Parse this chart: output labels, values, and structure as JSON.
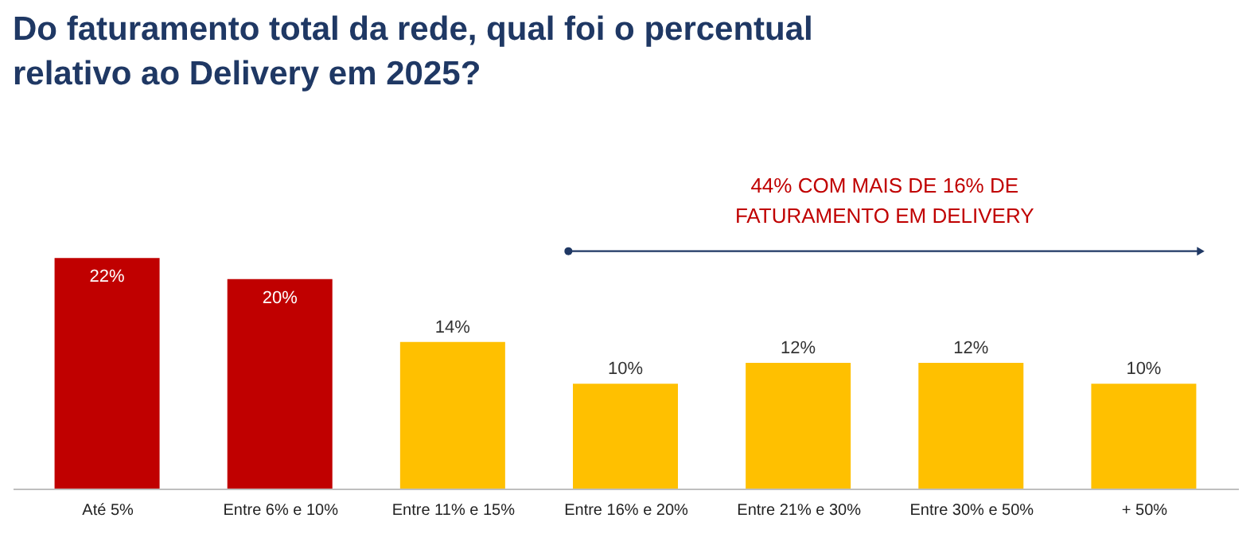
{
  "chart_data": {
    "type": "bar",
    "title": [
      "Do faturamento total da rede, qual foi o percentual",
      "relativo ao Delivery em 2025?"
    ],
    "categories": [
      "Até 5%",
      "Entre 6% e 10%",
      "Entre 11% e 15%",
      "Entre 16% e 20%",
      "Entre 21% e 30%",
      "Entre 30% e 50%",
      "+ 50%"
    ],
    "values": [
      22,
      20,
      14,
      10,
      12,
      12,
      10
    ],
    "value_labels": [
      "22%",
      "20%",
      "14%",
      "10%",
      "12%",
      "12%",
      "10%"
    ],
    "colors": [
      "#c00000",
      "#c00000",
      "#ffc000",
      "#ffc000",
      "#ffc000",
      "#ffc000",
      "#ffc000"
    ],
    "annotations": [
      "44% COM MAIS DE 16% DE FATURAMENTO EM DELIVERY"
    ],
    "grid": false
  }
}
